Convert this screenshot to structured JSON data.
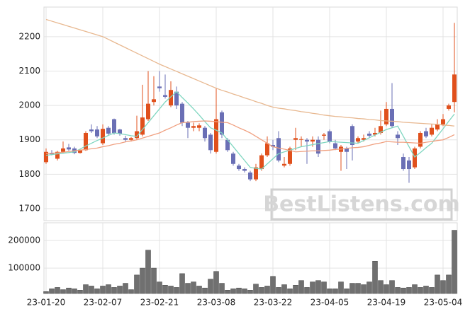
{
  "chart_data": [
    {
      "type": "candlestick",
      "categories": [
        "23-01-20",
        null,
        null,
        null,
        null,
        null,
        null,
        null,
        null,
        null,
        "23-02-07",
        null,
        null,
        null,
        null,
        null,
        null,
        null,
        null,
        null,
        "23-02-21",
        null,
        null,
        null,
        null,
        null,
        null,
        null,
        null,
        null,
        "23-03-08",
        null,
        null,
        null,
        null,
        null,
        null,
        null,
        null,
        null,
        "23-03-22",
        null,
        null,
        null,
        null,
        null,
        null,
        null,
        null,
        null,
        "23-04-05",
        null,
        null,
        null,
        null,
        null,
        null,
        null,
        null,
        null,
        "23-04-19",
        null,
        null,
        null,
        null,
        null,
        null,
        null,
        null,
        null,
        "23-05-04",
        null,
        null
      ],
      "open": [
        1835,
        1862,
        1845,
        1865,
        1878,
        1875,
        1862,
        1870,
        1930,
        1930,
        1890,
        1935,
        1960,
        1930,
        1905,
        1900,
        1905,
        1915,
        1960,
        2010,
        2055,
        2030,
        2000,
        2040,
        2005,
        1950,
        1935,
        1935,
        1935,
        1915,
        1865,
        1980,
        1900,
        1860,
        1825,
        1815,
        1805,
        1785,
        1815,
        1855,
        1885,
        1905,
        1825,
        1830,
        1900,
        1900,
        1900,
        1895,
        1900,
        1912,
        1925,
        1890,
        1865,
        1875,
        1940,
        1895,
        1900,
        1918,
        1915,
        1920,
        1945,
        1990,
        1915,
        1850,
        1840,
        1820,
        1880,
        1925,
        1915,
        1930,
        1945,
        1990,
        2010
      ],
      "high": [
        1875,
        1870,
        1868,
        1895,
        1888,
        1880,
        1872,
        1925,
        1945,
        1940,
        1945,
        1940,
        1962,
        1932,
        1912,
        1908,
        1970,
        2060,
        2100,
        2085,
        2100,
        2090,
        2070,
        2055,
        2010,
        1955,
        1950,
        1948,
        1940,
        1920,
        2050,
        1985,
        1905,
        1865,
        1830,
        1820,
        1810,
        1830,
        1860,
        1910,
        1900,
        1925,
        1850,
        1880,
        1935,
        1910,
        1905,
        1910,
        1910,
        1920,
        1930,
        1900,
        1885,
        1880,
        1945,
        1910,
        1915,
        1925,
        1935,
        1985,
        2010,
        2065,
        1925,
        1860,
        1850,
        1880,
        1925,
        1935,
        1945,
        1960,
        1975,
        2005,
        2240
      ],
      "low": [
        1830,
        1855,
        1840,
        1860,
        1868,
        1858,
        1860,
        1868,
        1920,
        1905,
        1885,
        1912,
        1915,
        1912,
        1895,
        1895,
        1900,
        1910,
        1955,
        2000,
        2040,
        2020,
        1995,
        1990,
        1940,
        1905,
        1925,
        1925,
        1895,
        1860,
        1860,
        1905,
        1865,
        1825,
        1810,
        1805,
        1780,
        1780,
        1810,
        1850,
        1870,
        1835,
        1820,
        1825,
        1870,
        1880,
        1830,
        1880,
        1850,
        1900,
        1890,
        1870,
        1810,
        1815,
        1840,
        1890,
        1895,
        1905,
        1910,
        1915,
        1940,
        1935,
        1885,
        1810,
        1775,
        1815,
        1875,
        1905,
        1910,
        1925,
        1940,
        1985,
        1980
      ],
      "close": [
        1865,
        1858,
        1865,
        1875,
        1872,
        1862,
        1870,
        1920,
        1925,
        1910,
        1932,
        1918,
        1920,
        1918,
        1900,
        1905,
        1925,
        1965,
        2005,
        2018,
        2050,
        2025,
        2045,
        2000,
        1950,
        1935,
        1940,
        1942,
        1905,
        1870,
        1960,
        1915,
        1870,
        1830,
        1815,
        1810,
        1785,
        1820,
        1855,
        1890,
        1880,
        1840,
        1830,
        1875,
        1905,
        1902,
        1895,
        1900,
        1860,
        1915,
        1895,
        1875,
        1880,
        1865,
        1885,
        1905,
        1905,
        1912,
        1920,
        1940,
        1990,
        1940,
        1905,
        1815,
        1815,
        1875,
        1920,
        1910,
        1935,
        1945,
        1960,
        2000,
        2090
      ],
      "up_color": "#e0501c",
      "down_color": "#6a6fb5",
      "series": [
        {
          "color": "#7fd6c0",
          "values": [
            1855,
            1857,
            1859,
            1861,
            1863,
            1865,
            1873,
            1882,
            1890,
            1898,
            1905,
            1913,
            1920,
            1918,
            1915,
            1912,
            1910,
            1930,
            1950,
            1970,
            1990,
            2010,
            2025,
            2040,
            2023,
            2007,
            1990,
            1972,
            1953,
            1935,
            1928,
            1920,
            1900,
            1880,
            1860,
            1840,
            1820,
            1817,
            1815,
            1830,
            1845,
            1860,
            1865,
            1870,
            1875,
            1880,
            1883,
            1886,
            1889,
            1892,
            1895,
            1894,
            1893,
            1892,
            1891,
            1890,
            1898,
            1906,
            1914,
            1922,
            1930,
            1935,
            1940,
            1910,
            1880,
            1850,
            1863,
            1877,
            1890,
            1911,
            1932,
            1954,
            1975
          ]
        },
        {
          "color": "#f0a080",
          "values": [
            1860,
            1861,
            1862,
            1864,
            1866,
            1868,
            1870,
            1872,
            1874,
            1876,
            1880,
            1883,
            1887,
            1890,
            1894,
            1897,
            1900,
            1905,
            1910,
            1915,
            1920,
            1928,
            1935,
            1943,
            1950,
            1951,
            1953,
            1954,
            1955,
            1954,
            1953,
            1951,
            1950,
            1943,
            1935,
            1928,
            1920,
            1910,
            1900,
            1890,
            1880,
            1876,
            1873,
            1869,
            1865,
            1866,
            1867,
            1868,
            1868,
            1869,
            1870,
            1872,
            1873,
            1875,
            1877,
            1878,
            1880,
            1884,
            1888,
            1891,
            1895,
            1894,
            1893,
            1893,
            1892,
            1891,
            1890,
            1893,
            1895,
            1898,
            1900,
            1907,
            1915
          ]
        },
        {
          "color": "#e8b890",
          "values": [
            2250,
            2245,
            2240,
            2235,
            2230,
            2225,
            2220,
            2215,
            2210,
            2205,
            2200,
            2192,
            2184,
            2176,
            2168,
            2160,
            2152,
            2144,
            2136,
            2128,
            2120,
            2113,
            2106,
            2099,
            2092,
            2085,
            2078,
            2071,
            2064,
            2057,
            2050,
            2044,
            2039,
            2033,
            2028,
            2022,
            2017,
            2011,
            2006,
            2000,
            1995,
            1992,
            1990,
            1987,
            1985,
            1982,
            1980,
            1977,
            1975,
            1972,
            1970,
            1968,
            1967,
            1965,
            1964,
            1962,
            1961,
            1959,
            1958,
            1956,
            1955,
            1954,
            1953,
            1951,
            1950,
            1949,
            1948,
            1947,
            1946,
            1945,
            1943,
            1942,
            1940
          ]
        }
      ],
      "ylim": [
        1665,
        2286
      ],
      "yticks": [
        1700,
        1800,
        1900,
        2000,
        2100,
        2200
      ],
      "grid": true,
      "watermark": "BestListens.com"
    },
    {
      "type": "bar",
      "color": "#707070",
      "values": [
        15000,
        25000,
        30000,
        22000,
        28000,
        25000,
        20000,
        40000,
        35000,
        25000,
        35000,
        40000,
        30000,
        35000,
        45000,
        22000,
        75000,
        100000,
        165000,
        100000,
        50000,
        38000,
        35000,
        30000,
        80000,
        45000,
        50000,
        35000,
        28000,
        60000,
        88000,
        45000,
        20000,
        25000,
        28000,
        25000,
        20000,
        42000,
        30000,
        35000,
        70000,
        30000,
        40000,
        25000,
        38000,
        55000,
        30000,
        50000,
        55000,
        50000,
        25000,
        25000,
        50000,
        25000,
        45000,
        45000,
        40000,
        50000,
        125000,
        55000,
        40000,
        55000,
        30000,
        28000,
        30000,
        40000,
        30000,
        35000,
        30000,
        75000,
        55000,
        75000,
        237000
      ],
      "ylim": [
        8000,
        264000
      ],
      "yticks": [
        100000,
        200000
      ],
      "grid": true
    }
  ]
}
